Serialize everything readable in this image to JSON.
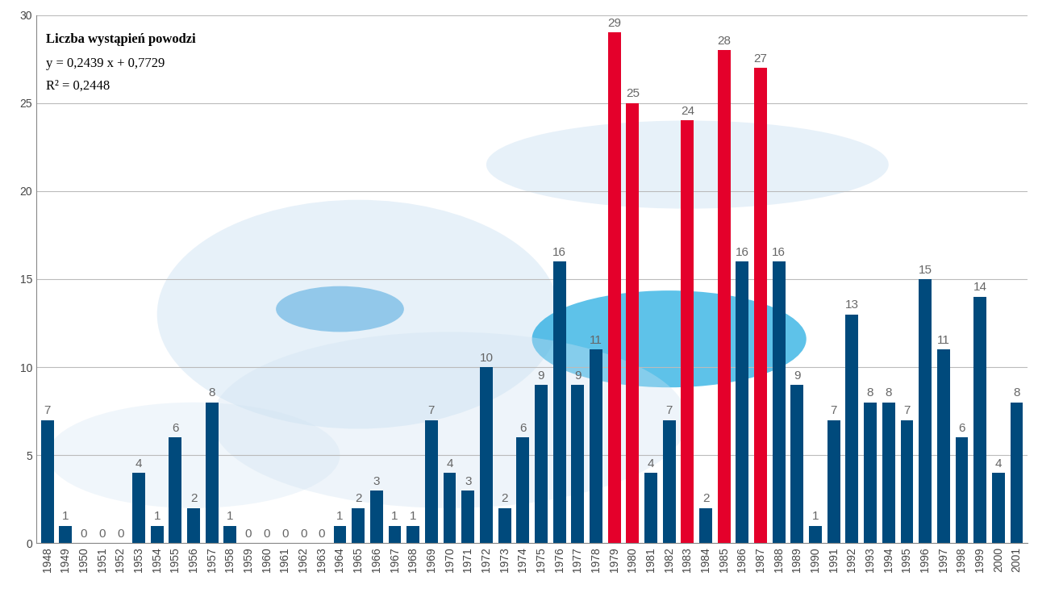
{
  "chart_data": {
    "type": "bar",
    "title": "Liczba wystąpień powodzi",
    "annotations": [
      "y = 0,2439 x + 0,7729",
      "R² = 0,2448"
    ],
    "categories": [
      "1948",
      "1949",
      "1950",
      "1951",
      "1952",
      "1953",
      "1954",
      "1955",
      "1956",
      "1957",
      "1958",
      "1959",
      "1960",
      "1961",
      "1962",
      "1963",
      "1964",
      "1965",
      "1966",
      "1967",
      "1968",
      "1969",
      "1970",
      "1971",
      "1972",
      "1973",
      "1974",
      "1975",
      "1976",
      "1977",
      "1978",
      "1979",
      "1980",
      "1981",
      "1982",
      "1983",
      "1984",
      "1985",
      "1986",
      "1987",
      "1988",
      "1989",
      "1990",
      "1991",
      "1992",
      "1993",
      "1994",
      "1995",
      "1996",
      "1997",
      "1998",
      "1999",
      "2000",
      "2001"
    ],
    "values": [
      7,
      1,
      0,
      0,
      0,
      4,
      1,
      6,
      2,
      8,
      1,
      0,
      0,
      0,
      0,
      0,
      1,
      2,
      3,
      1,
      1,
      7,
      4,
      3,
      10,
      2,
      6,
      9,
      16,
      9,
      11,
      29,
      25,
      4,
      7,
      24,
      2,
      28,
      16,
      27,
      16,
      9,
      1,
      7,
      13,
      8,
      8,
      7,
      15,
      11,
      6,
      14,
      4,
      8
    ],
    "colors": [
      "#004a7c",
      "#004a7c",
      "#004a7c",
      "#004a7c",
      "#004a7c",
      "#004a7c",
      "#004a7c",
      "#004a7c",
      "#004a7c",
      "#004a7c",
      "#004a7c",
      "#004a7c",
      "#004a7c",
      "#004a7c",
      "#004a7c",
      "#004a7c",
      "#004a7c",
      "#004a7c",
      "#004a7c",
      "#004a7c",
      "#004a7c",
      "#004a7c",
      "#004a7c",
      "#004a7c",
      "#004a7c",
      "#004a7c",
      "#004a7c",
      "#004a7c",
      "#004a7c",
      "#004a7c",
      "#004a7c",
      "#e4002b",
      "#e4002b",
      "#004a7c",
      "#004a7c",
      "#e4002b",
      "#004a7c",
      "#e4002b",
      "#004a7c",
      "#e4002b",
      "#004a7c",
      "#004a7c",
      "#004a7c",
      "#004a7c",
      "#004a7c",
      "#004a7c",
      "#004a7c",
      "#004a7c",
      "#004a7c",
      "#004a7c",
      "#004a7c",
      "#004a7c",
      "#004a7c",
      "#004a7c"
    ],
    "ylim": [
      0,
      30
    ],
    "yticks": [
      0,
      5,
      10,
      15,
      20,
      25,
      30
    ],
    "grid": true,
    "data_labels": true
  }
}
